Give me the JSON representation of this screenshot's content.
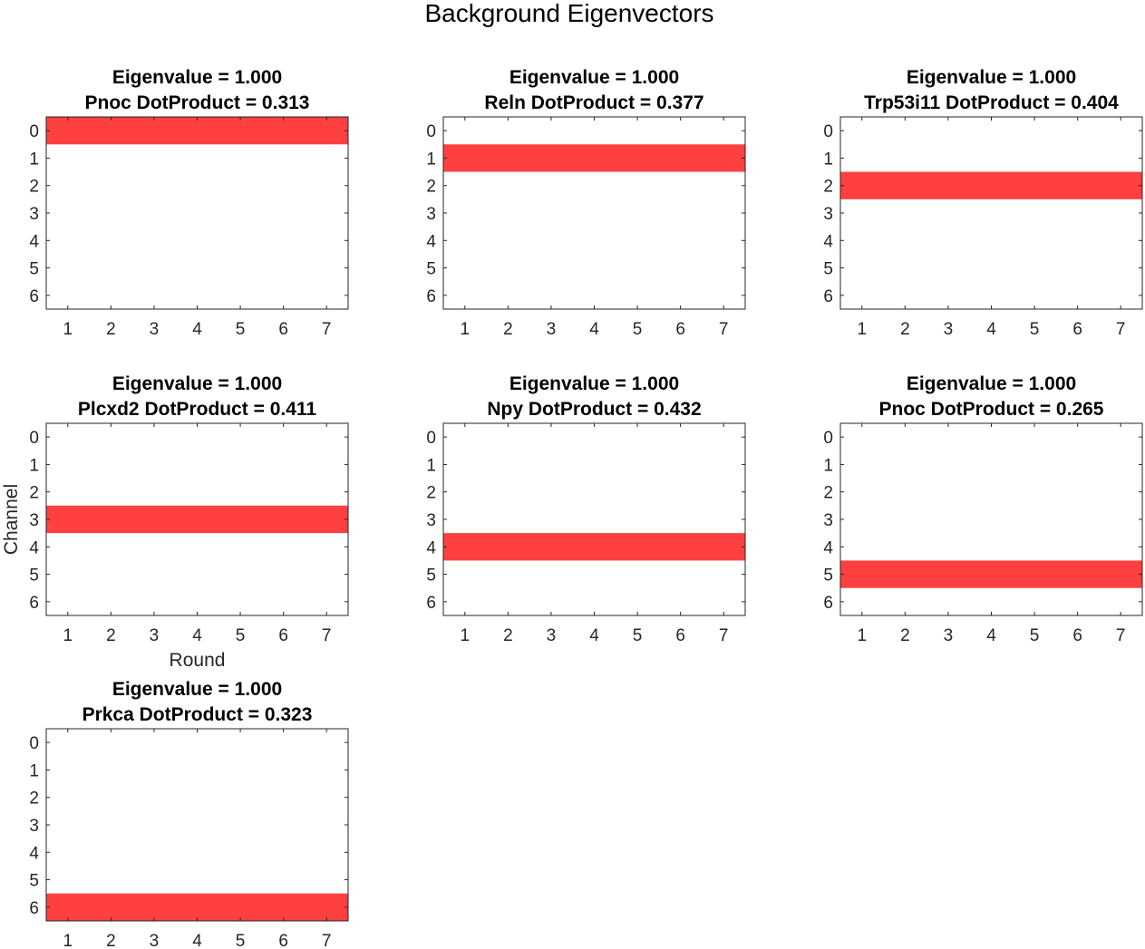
{
  "suptitle": "Background Eigenvectors",
  "chart_data": {
    "type": "heatmap",
    "title": "Background Eigenvectors",
    "xlabel": "Round",
    "ylabel": "Channel",
    "x_ticks": [
      "1",
      "2",
      "3",
      "4",
      "5",
      "6",
      "7"
    ],
    "y_ticks": [
      "0",
      "1",
      "2",
      "3",
      "4",
      "5",
      "6"
    ],
    "highlight_color": "#ff4040",
    "background_color": "#ffffff",
    "panels": [
      {
        "title_line1": "Eigenvalue = 1.000",
        "title_line2": "Pnoc DotProduct = 0.313",
        "highlight_channel": 0
      },
      {
        "title_line1": "Eigenvalue = 1.000",
        "title_line2": "Reln DotProduct = 0.377",
        "highlight_channel": 1
      },
      {
        "title_line1": "Eigenvalue = 1.000",
        "title_line2": "Trp53i11 DotProduct = 0.404",
        "highlight_channel": 2
      },
      {
        "title_line1": "Eigenvalue = 1.000",
        "title_line2": "Plcxd2 DotProduct = 0.411",
        "highlight_channel": 3
      },
      {
        "title_line1": "Eigenvalue = 1.000",
        "title_line2": "Npy DotProduct = 0.432",
        "highlight_channel": 4
      },
      {
        "title_line1": "Eigenvalue = 1.000",
        "title_line2": "Pnoc DotProduct = 0.265",
        "highlight_channel": 5
      },
      {
        "title_line1": "Eigenvalue = 1.000",
        "title_line2": "Prkca DotProduct = 0.323",
        "highlight_channel": 6
      }
    ]
  }
}
